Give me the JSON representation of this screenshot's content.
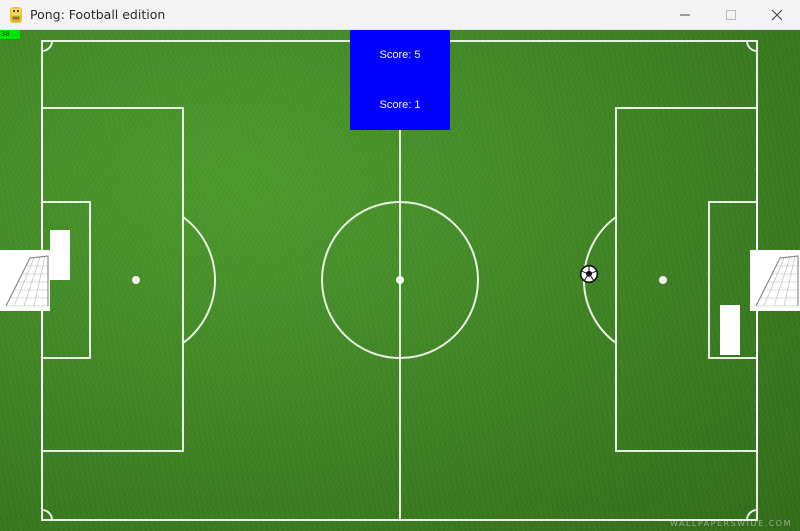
{
  "window": {
    "title": "Pong: Football edition",
    "app_icon": "python-snake-icon",
    "controls": {
      "minimize": "minimize-icon",
      "maximize": "maximize-icon",
      "close": "close-icon"
    }
  },
  "game": {
    "fps_counter": "30",
    "scoreboard": {
      "background_color": "#0000ff",
      "score_top": "Score: 5",
      "score_bottom": "Score: 1"
    },
    "ball_icon": "soccer-ball-icon",
    "field_color": "#3b7a20",
    "watermark": "WALLPAPERSWIDE.COM"
  }
}
